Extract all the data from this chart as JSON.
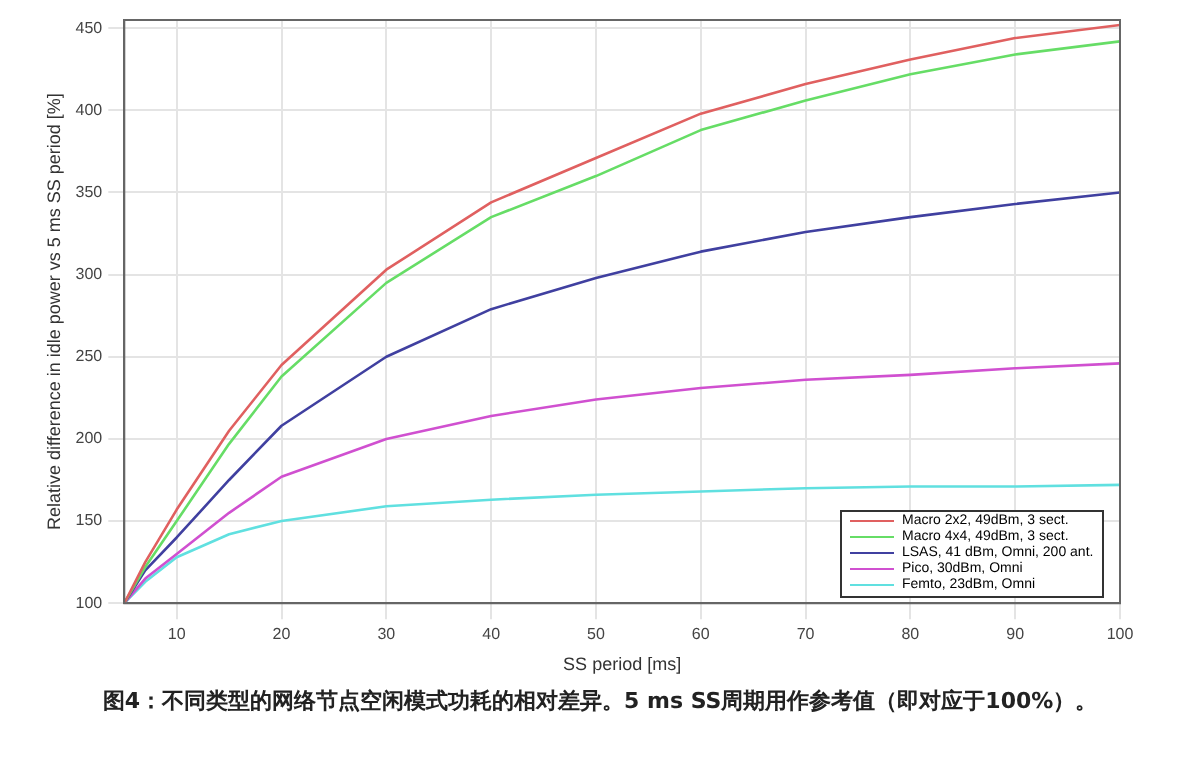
{
  "chart_data": {
    "type": "line",
    "xlabel": "SS period [ms]",
    "ylabel": "Relative difference in idle power vs 5 ms SS period [%]",
    "x": [
      5,
      7,
      10,
      15,
      20,
      30,
      40,
      50,
      60,
      70,
      80,
      90,
      100
    ],
    "series": [
      {
        "name": "Macro 2x2, 49dBm, 3 sect.",
        "color": "#e06060",
        "values": [
          100,
          125,
          157,
          205,
          245,
          303,
          344,
          371,
          398,
          416,
          431,
          444,
          452
        ]
      },
      {
        "name": "Macro 4x4, 49dBm, 3 sect.",
        "color": "#66dd66",
        "values": [
          100,
          122,
          150,
          197,
          238,
          295,
          335,
          360,
          388,
          406,
          422,
          434,
          442
        ]
      },
      {
        "name": "LSAS, 41 dBm, Omni, 200 ant.",
        "color": "#4040a0",
        "values": [
          100,
          120,
          140,
          175,
          208,
          250,
          279,
          298,
          314,
          326,
          335,
          343,
          350
        ]
      },
      {
        "name": "Pico, 30dBm, Omni",
        "color": "#d050d0",
        "values": [
          100,
          115,
          130,
          155,
          177,
          200,
          214,
          224,
          231,
          236,
          239,
          243,
          246
        ]
      },
      {
        "name": "Femto, 23dBm, Omni",
        "color": "#60e0e0",
        "values": [
          100,
          113,
          128,
          142,
          150,
          159,
          163,
          166,
          168,
          170,
          171,
          171,
          172
        ]
      }
    ],
    "xlim": [
      5,
      100
    ],
    "xticks": [
      10,
      20,
      30,
      40,
      50,
      60,
      70,
      80,
      90,
      100
    ],
    "ylim": [
      100,
      455
    ],
    "yticks": [
      100,
      150,
      200,
      250,
      300,
      350,
      400,
      450
    ],
    "grid": true,
    "legend": "bottom right",
    "marker": "none",
    "line_style": "solid",
    "annotations": [
      "图4：不同类型的网络节点空闲模式功耗的相对差异。5 ms SS周期用作参考值（即对应于100%）。"
    ]
  }
}
